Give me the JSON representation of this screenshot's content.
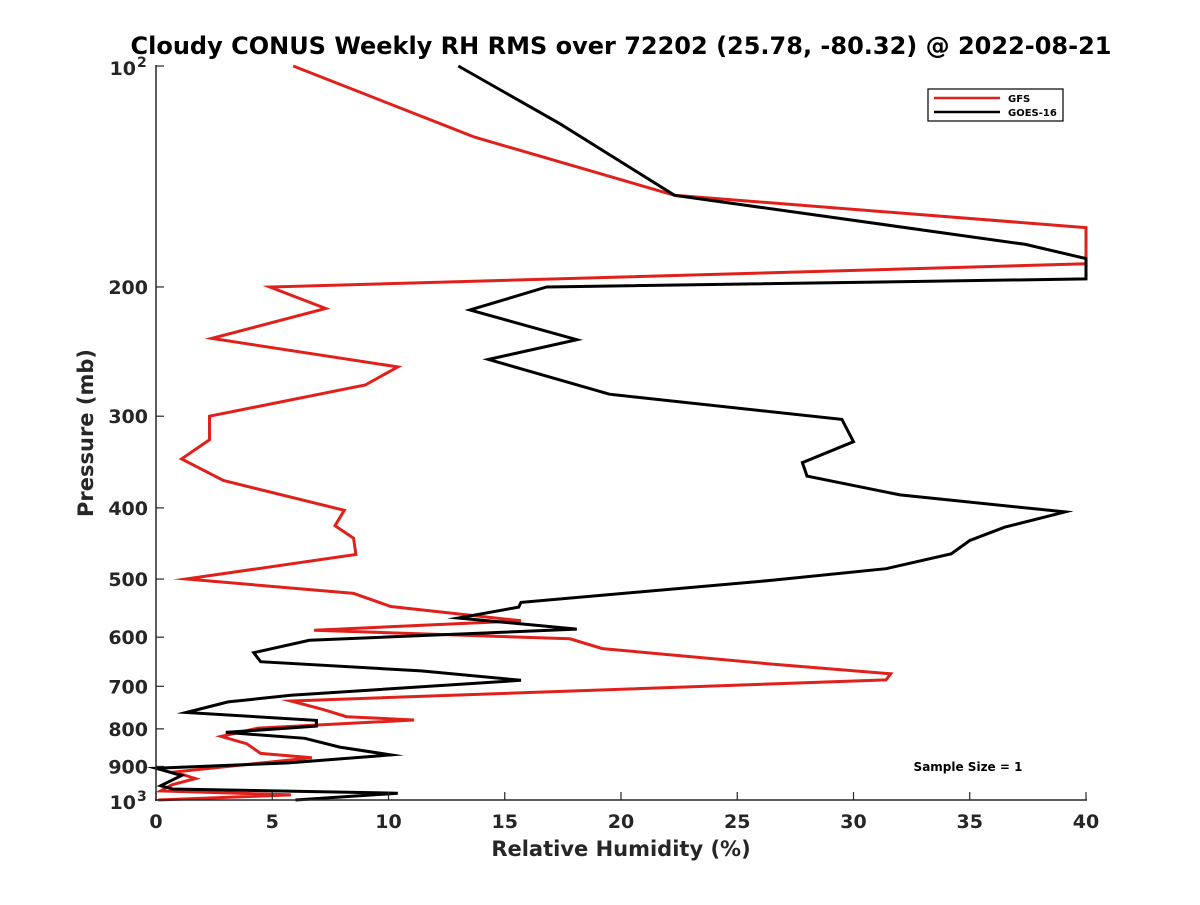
{
  "chart_data": {
    "type": "line",
    "title": "Cloudy CONUS Weekly RH RMS over 72202 (25.78, -80.32) @ 2022-08-21",
    "xlabel": "Relative Humidity (%)",
    "ylabel": "Pressure (mb)",
    "xlim": [
      0,
      40
    ],
    "ylim": [
      100,
      1000
    ],
    "y_scale": "log",
    "y_reversed": true,
    "grid": false,
    "legend_position": "top-right",
    "x_ticks": [
      "0",
      "5",
      "10",
      "15",
      "20",
      "25",
      "30",
      "35",
      "40"
    ],
    "y_ticks": [
      {
        "value": 100,
        "base": "10",
        "exp": "2"
      },
      {
        "value": 200,
        "label": "200"
      },
      {
        "value": 300,
        "label": "300"
      },
      {
        "value": 400,
        "label": "400"
      },
      {
        "value": 500,
        "label": "500"
      },
      {
        "value": 600,
        "label": "600"
      },
      {
        "value": 700,
        "label": "700"
      },
      {
        "value": 800,
        "label": "800"
      },
      {
        "value": 900,
        "label": "900"
      },
      {
        "value": 1000,
        "base": "10",
        "exp": "3"
      }
    ],
    "annotation": "Sample Size = 1",
    "series": [
      {
        "name": "GFS",
        "color": "#e0201b",
        "points": [
          [
            5.9,
            100
          ],
          [
            13.7,
            125
          ],
          [
            22.3,
            150
          ],
          [
            40.0,
            166
          ],
          [
            40.0,
            186
          ],
          [
            4.9,
            200
          ],
          [
            7.3,
            214
          ],
          [
            2.4,
            235
          ],
          [
            10.4,
            257
          ],
          [
            9.0,
            272
          ],
          [
            2.3,
            300
          ],
          [
            2.3,
            323
          ],
          [
            1.1,
            343
          ],
          [
            2.9,
            367
          ],
          [
            8.1,
            403
          ],
          [
            7.7,
            423
          ],
          [
            8.5,
            440
          ],
          [
            8.6,
            463
          ],
          [
            1.3,
            500
          ],
          [
            8.5,
            523
          ],
          [
            10.1,
            545
          ],
          [
            15.7,
            570
          ],
          [
            6.8,
            587
          ],
          [
            17.8,
            603
          ],
          [
            19.2,
            622
          ],
          [
            26.3,
            652
          ],
          [
            31.6,
            673
          ],
          [
            31.4,
            686
          ],
          [
            5.8,
            733
          ],
          [
            7.2,
            753
          ],
          [
            8.2,
            770
          ],
          [
            11.1,
            778
          ],
          [
            4.4,
            798
          ],
          [
            2.8,
            819
          ],
          [
            3.9,
            838
          ],
          [
            4.5,
            864
          ],
          [
            6.7,
            876
          ],
          [
            0.8,
            916
          ],
          [
            1.7,
            935
          ],
          [
            0.7,
            953
          ],
          [
            0.2,
            972
          ],
          [
            5.8,
            984
          ],
          [
            0.1,
            1000
          ]
        ]
      },
      {
        "name": "GOES-16",
        "color": "#000000",
        "points": [
          [
            13.0,
            100
          ],
          [
            17.4,
            120
          ],
          [
            22.3,
            150
          ],
          [
            37.4,
            175
          ],
          [
            40.0,
            183
          ],
          [
            40.0,
            195
          ],
          [
            16.8,
            200
          ],
          [
            13.5,
            215
          ],
          [
            18.1,
            236
          ],
          [
            14.3,
            251
          ],
          [
            19.5,
            280
          ],
          [
            29.5,
            303
          ],
          [
            30.0,
            325
          ],
          [
            27.8,
            347
          ],
          [
            28.0,
            362
          ],
          [
            32.0,
            384
          ],
          [
            39.1,
            405
          ],
          [
            36.5,
            425
          ],
          [
            35.0,
            443
          ],
          [
            34.2,
            462
          ],
          [
            31.4,
            484
          ],
          [
            26.5,
            502
          ],
          [
            15.7,
            538
          ],
          [
            15.6,
            546
          ],
          [
            13.0,
            565
          ],
          [
            18.1,
            585
          ],
          [
            6.6,
            606
          ],
          [
            4.2,
            630
          ],
          [
            4.5,
            648
          ],
          [
            11.4,
            667
          ],
          [
            15.7,
            687
          ],
          [
            5.8,
            720
          ],
          [
            3.1,
            735
          ],
          [
            1.3,
            760
          ],
          [
            6.9,
            779
          ],
          [
            6.9,
            793
          ],
          [
            3.0,
            809
          ],
          [
            6.4,
            824
          ],
          [
            7.9,
            847
          ],
          [
            10.1,
            868
          ],
          [
            5.7,
            890
          ],
          [
            0.0,
            905
          ],
          [
            1.1,
            926
          ],
          [
            0.2,
            956
          ],
          [
            0.7,
            966
          ],
          [
            10.4,
            979
          ],
          [
            6.0,
            1000
          ]
        ]
      }
    ]
  }
}
